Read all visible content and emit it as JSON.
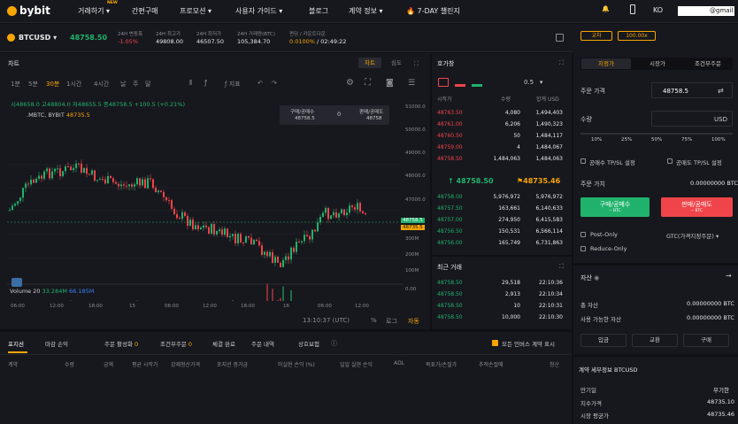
{
  "nav": {
    "brand": "bybit",
    "trade": "거래하기",
    "new_badge": "NEW",
    "buy": "간편구매",
    "promo": "프로모션",
    "guide": "사용자 가이드",
    "blog": "블로그",
    "contract": "계약 정보",
    "challenge": "7-DAY 챌린지",
    "lang": "KO",
    "email": "@gmail"
  },
  "ticker": {
    "symbol": "BTCUSD",
    "price": "48758.50",
    "change_label": "24H 변동폭",
    "change_value": "-1.05%",
    "high_label": "24H 최고가",
    "high_value": "49808.00",
    "low_label": "24H 최저가",
    "low_value": "46507.50",
    "volume_label": "24H 거래량(BTC)",
    "volume_value": "105,384.70",
    "funding_label": "펀딩 / 카운트다운",
    "funding_rate": "0.0100%",
    "countdown": "02:49:22"
  },
  "chart": {
    "title": "차트",
    "tab_chart": "차트",
    "tab_depth": "심도",
    "intervals": [
      "1분",
      "5분",
      "30분",
      "1시간",
      "4시간",
      "날",
      "주",
      "달"
    ],
    "active_interval": "30분",
    "indicator": "지표",
    "ohlc": "시48658.0  고48804.0  저48655.5  종48758.5  +100.5 (+0.21%)",
    "series_label": ".MBTC, BYBIT",
    "series_price": "48735.5",
    "buy_box_label": "구매/공매수",
    "buy_box_price": "48758.5",
    "sell_box_label": "판매/공매도",
    "sell_box_price": "48758",
    "box_qty": "0",
    "volume_label": "Volume 20",
    "volume_v1": "33.284M",
    "volume_v2": "66.185M",
    "time": "13:10:37 (UTC)",
    "pct": "%",
    "log": "로그",
    "auto": "자동",
    "price_axis": [
      "51000.0",
      "50000.0",
      "49000.0",
      "48000.0",
      "47000.0"
    ],
    "price_tag1": "48758.5",
    "price_tag2": "48735.5",
    "vol_axis": [
      "300M",
      "200M",
      "100M",
      "0.00"
    ],
    "time_axis": [
      "06:00",
      "12:00",
      "18:00",
      "15",
      "06:00",
      "12:00",
      "18:00",
      "16",
      "06:00",
      "12:00"
    ]
  },
  "chart_data": {
    "type": "candlestick",
    "title": "",
    "ylim": [
      46500,
      51500
    ],
    "series": [
      {
        "name": ".MBTC, BYBIT",
        "last": 48735.5
      }
    ],
    "volume": {
      "name": "Volume 20",
      "ma": "33.284M",
      "last": "66.185M"
    }
  },
  "orderbook": {
    "title": "호가창",
    "precision": "0.5",
    "col_price": "시작가",
    "col_qty": "수량",
    "col_total": "합계 USD",
    "asks": [
      [
        "48763.50",
        "4,080",
        "1,494,403"
      ],
      [
        "48761.00",
        "6,206",
        "1,490,323"
      ],
      [
        "48760.50",
        "50",
        "1,484,117"
      ],
      [
        "48759.00",
        "4",
        "1,484,067"
      ],
      [
        "48758.50",
        "1,484,063",
        "1,484,063"
      ]
    ],
    "last_price": "48758.50",
    "mark_price": "48735.46",
    "bids": [
      [
        "48758.00",
        "5,976,972",
        "5,976,972"
      ],
      [
        "48757.50",
        "163,661",
        "6,140,633"
      ],
      [
        "48757.00",
        "274,950",
        "6,415,583"
      ],
      [
        "48756.50",
        "150,531",
        "6,566,114"
      ],
      [
        "48756.00",
        "165,749",
        "6,731,863"
      ]
    ]
  },
  "trades": {
    "title": "최근 거래",
    "rows": [
      [
        "48758.50",
        "29,518",
        "22:10:36"
      ],
      [
        "48758.50",
        "2,913",
        "22:10:34"
      ],
      [
        "48758.50",
        "10",
        "22:10:31"
      ],
      [
        "48758.50",
        "10,000",
        "22:10:30"
      ]
    ]
  },
  "order": {
    "margin_mode": "교차",
    "leverage": "100.00x",
    "tab_limit": "지정가",
    "tab_market": "시장가",
    "tab_conditional": "조건부주문",
    "price_label": "주문 가격",
    "price_value": "48758.5",
    "qty_label": "수량",
    "qty_unit": "USD",
    "pcts": [
      "10%",
      "25%",
      "50%",
      "75%",
      "100%"
    ],
    "tpsl_buy": "공매수 TP/SL 설정",
    "tpsl_sell": "공매도 TP/SL 설정",
    "value_label": "주문 가치",
    "value": "0.00000000 BTC",
    "buy_btn": "구매/공매수",
    "buy_sub": "-- BTC",
    "sell_btn": "판매/공매도",
    "sell_sub": "-- BTC",
    "post_only": "Post-Only",
    "tif": "GTC(가격지정주문)",
    "reduce_only": "Reduce-Only"
  },
  "assets": {
    "title": "자산",
    "total_label": "총 자산",
    "total_value": "0.00000000 BTC",
    "avail_label": "사용 가능한 자산",
    "avail_value": "0.00000000 BTC",
    "deposit": "입금",
    "exchange": "교환",
    "buy": "구매"
  },
  "contract": {
    "title": "계약 세부정보 BTCUSD",
    "expiry_label": "만기일",
    "expiry_value": "무기한",
    "index_label": "지수가격",
    "index_value": "48735.10",
    "mark_label": "시장 평균가",
    "mark_value": "48735.46"
  },
  "positions": {
    "tabs": [
      "포지션",
      "마감 손익",
      "주문 활성화",
      "조건부주문",
      "체결 완료",
      "주문 내역",
      "상호보험"
    ],
    "counts": [
      "",
      "",
      "0",
      "0",
      "",
      "",
      ""
    ],
    "show_all": "모든 인버스 계약 표시",
    "columns": [
      "계약",
      "수량",
      "금액",
      "평균 시작가",
      "강제청산가격",
      "포지션 증거금",
      "미실현 손익 (%)",
      "일일 실현 손익",
      "ADL",
      "목표가/손절가",
      "추적손절매",
      "청산"
    ]
  },
  "colors": {
    "accent": "#f7a600",
    "up": "#20b26c",
    "down": "#ef454a",
    "bg": "#17181e"
  }
}
